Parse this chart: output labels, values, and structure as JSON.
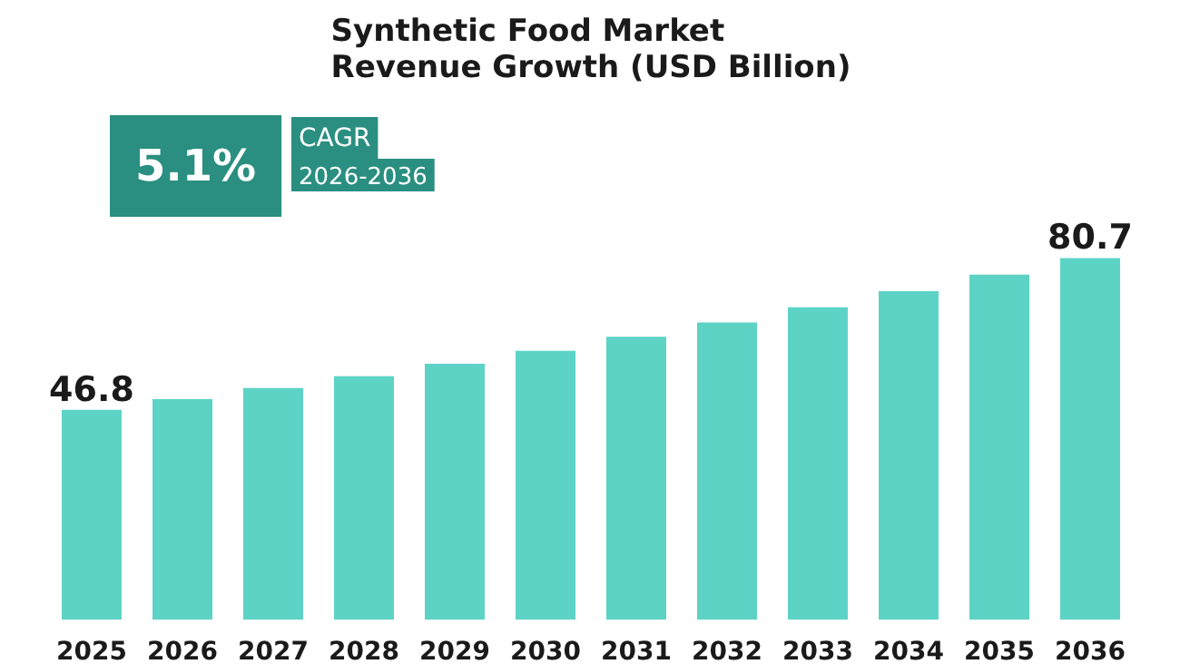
{
  "chart_data": {
    "type": "bar",
    "title": "Synthetic Food Market\nRevenue Growth (USD Billion)",
    "categories": [
      "2025",
      "2026",
      "2027",
      "2028",
      "2029",
      "2030",
      "2031",
      "2032",
      "2033",
      "2034",
      "2035",
      "2036"
    ],
    "values": [
      46.8,
      49.2,
      51.7,
      54.3,
      57.1,
      60.0,
      63.1,
      66.3,
      69.7,
      73.3,
      77.0,
      80.7
    ],
    "value_labels": [
      "46.8",
      null,
      null,
      null,
      null,
      null,
      null,
      null,
      null,
      null,
      null,
      "80.7"
    ],
    "color": "#5dd3c6",
    "annotations": [
      "5.1%",
      "CAGR",
      "2026-2036"
    ],
    "grid": false
  }
}
